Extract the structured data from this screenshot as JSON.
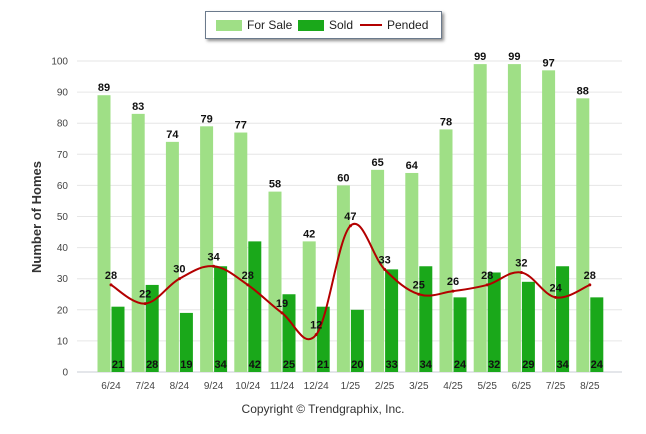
{
  "chart_data": {
    "type": "bar",
    "categories": [
      "6/24",
      "7/24",
      "8/24",
      "9/24",
      "10/24",
      "11/24",
      "12/24",
      "1/25",
      "2/25",
      "3/25",
      "4/25",
      "5/25",
      "6/25",
      "7/25",
      "8/25"
    ],
    "series": [
      {
        "name": "For Sale",
        "type": "bar",
        "color": "#9fdf86",
        "values": [
          89,
          83,
          74,
          79,
          77,
          58,
          42,
          60,
          65,
          64,
          78,
          99,
          99,
          97,
          88
        ]
      },
      {
        "name": "Sold",
        "type": "bar",
        "color": "#1aa81a",
        "values": [
          21,
          28,
          19,
          34,
          42,
          25,
          21,
          20,
          33,
          34,
          24,
          32,
          29,
          34,
          24
        ]
      },
      {
        "name": "Pended",
        "type": "line",
        "color": "#b30000",
        "values": [
          28,
          22,
          30,
          34,
          28,
          19,
          12,
          47,
          33,
          25,
          26,
          28,
          32,
          24,
          28
        ]
      }
    ],
    "ylabel": "Number of Homes",
    "xlabel": "",
    "ylim": [
      0,
      100
    ],
    "yticks": [
      0,
      10,
      20,
      30,
      40,
      50,
      60,
      70,
      80,
      90,
      100
    ],
    "grid": true,
    "legend_position": "top-center"
  },
  "footer": {
    "copyright": "Copyright © Trendgraphix, Inc."
  }
}
